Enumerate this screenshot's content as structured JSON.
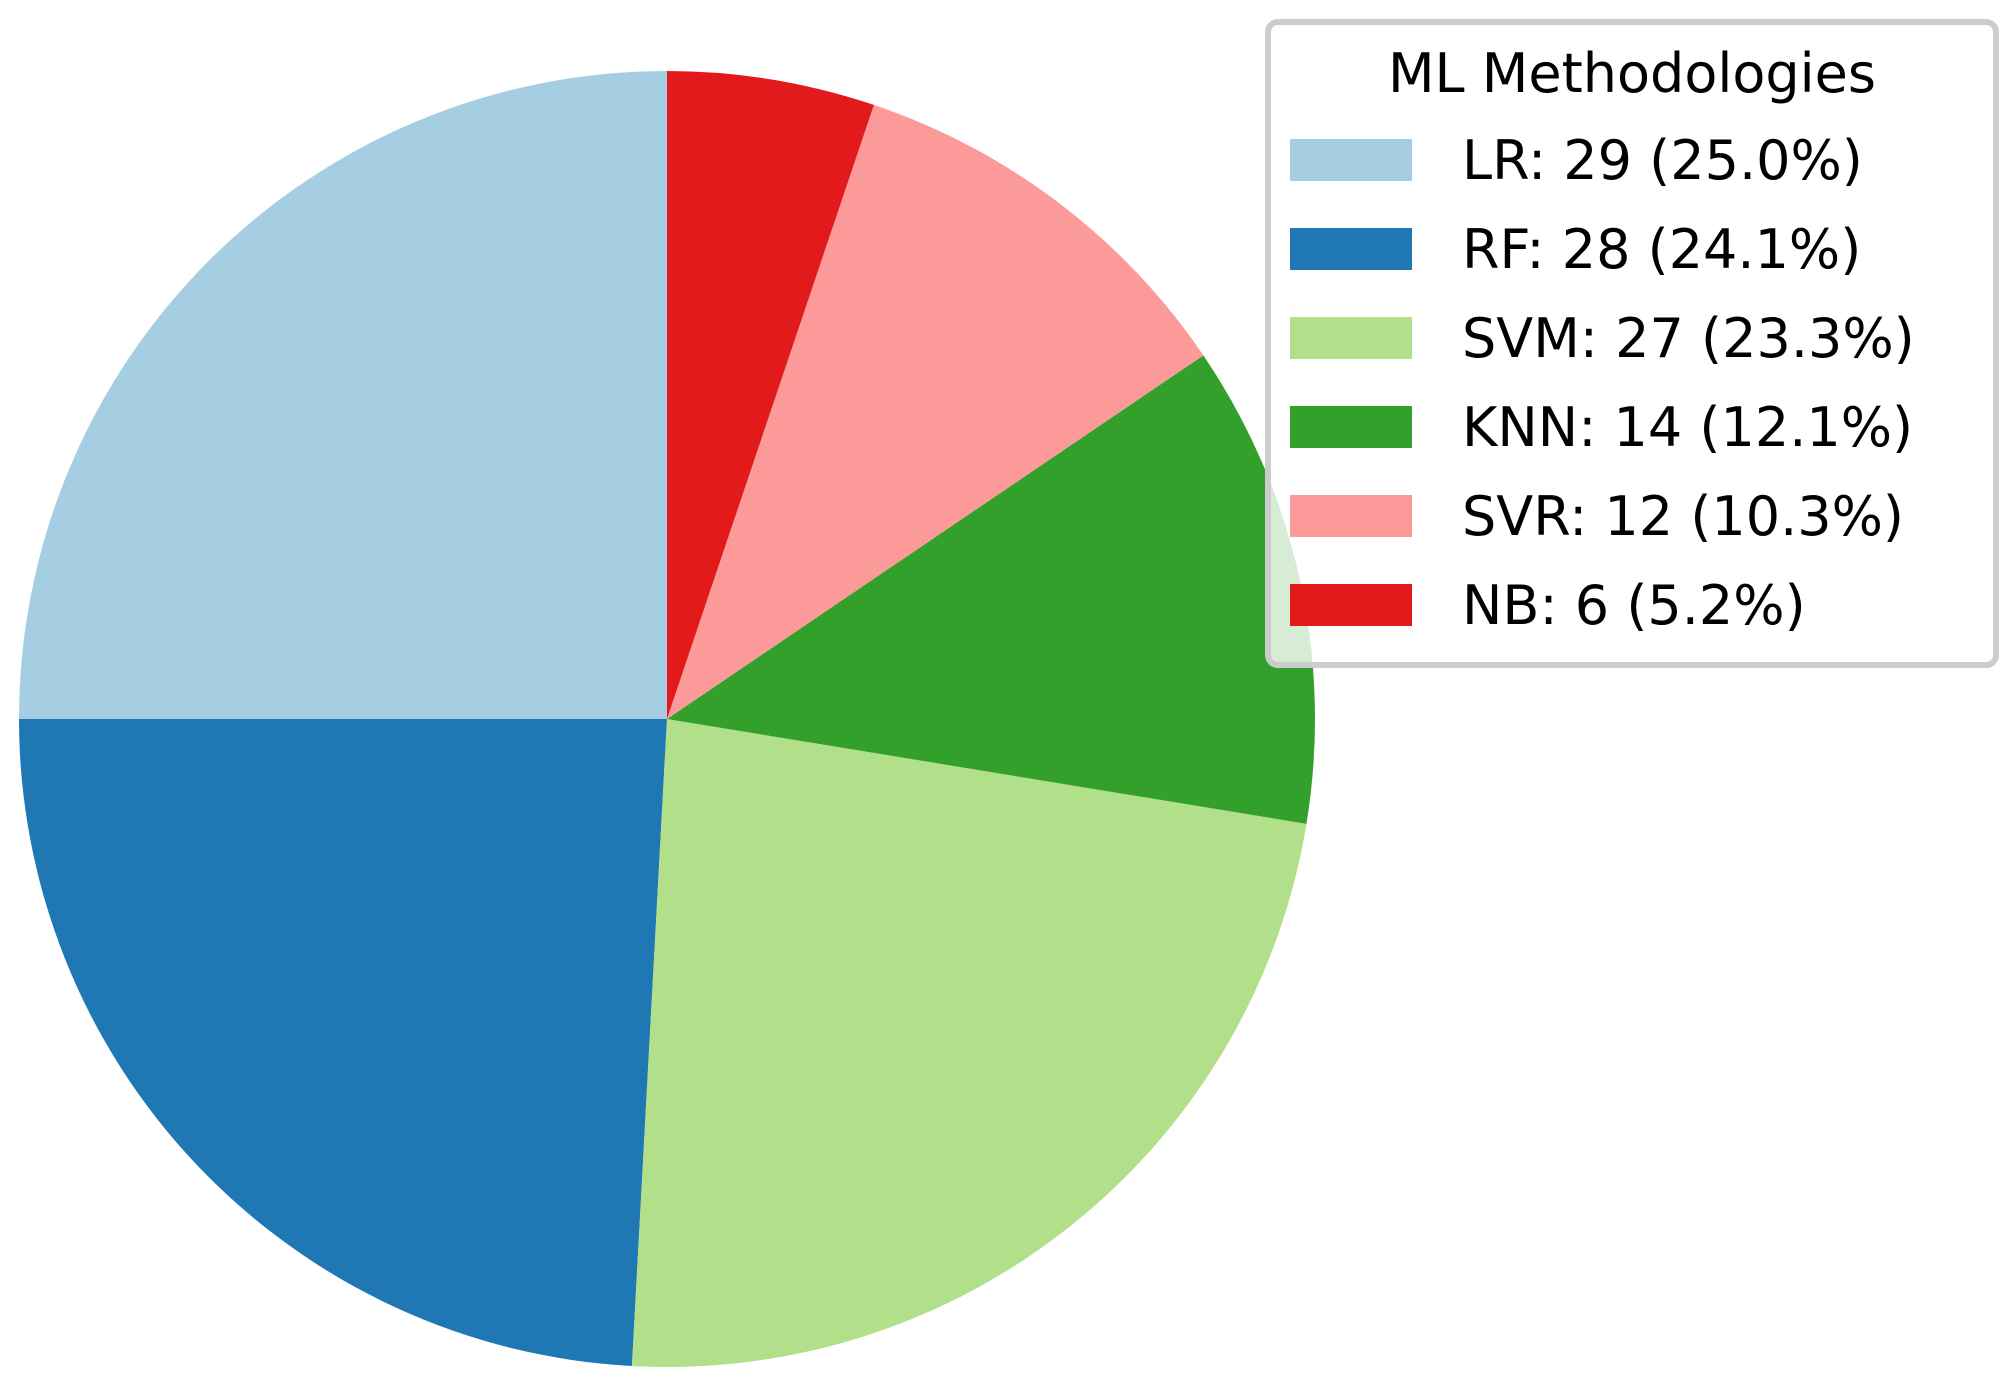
{
  "chart_data": {
    "type": "pie",
    "legend": {
      "title": "ML Methodologies",
      "placement": "top-right"
    },
    "slices": [
      {
        "label": "LR",
        "value": 29,
        "percent": "25.0%",
        "color": "#a6cee3",
        "legend_text": "LR: 29 (25.0%)"
      },
      {
        "label": "RF",
        "value": 28,
        "percent": "24.1%",
        "color": "#1f78b4",
        "legend_text": "RF: 28 (24.1%)"
      },
      {
        "label": "SVM",
        "value": 27,
        "percent": "23.3%",
        "color": "#b2df8a",
        "legend_text": "SVM: 27 (23.3%)"
      },
      {
        "label": "KNN",
        "value": 14,
        "percent": "12.1%",
        "color": "#33a02c",
        "legend_text": "KNN: 14 (12.1%)"
      },
      {
        "label": "SVR",
        "value": 12,
        "percent": "10.3%",
        "color": "#fb9a99",
        "legend_text": "SVR: 12 (10.3%)"
      },
      {
        "label": "NB",
        "value": 6,
        "percent": "5.2%",
        "color": "#e31a1c",
        "legend_text": "NB: 6 (5.2%)"
      }
    ],
    "start_angle": 90,
    "direction": "counterclockwise"
  }
}
